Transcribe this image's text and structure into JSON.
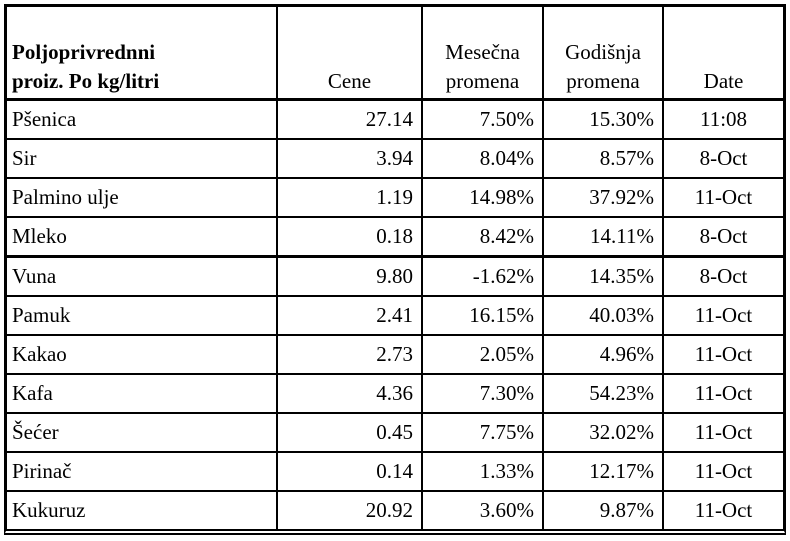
{
  "table": {
    "colors": {
      "border": "#000000",
      "text": "#000000",
      "background": "#ffffff"
    },
    "header": {
      "product_line1": "Poljoprivrednni",
      "product_line2": "proiz. Po kg/litri",
      "cene": "Cene",
      "mesecna_line1": "Mesečna",
      "mesecna_line2": "promena",
      "godisnja_line1": "Godišnja",
      "godisnja_line2": "promena",
      "date": "Date"
    },
    "rows": [
      {
        "name": "Pšenica",
        "cene": "27.14",
        "mesecna": "7.50%",
        "godisnja": "15.30%",
        "date": "11:08"
      },
      {
        "name": "Sir",
        "cene": "3.94",
        "mesecna": "8.04%",
        "godisnja": "8.57%",
        "date": "8-Oct"
      },
      {
        "name": "Palmino ulje",
        "cene": "1.19",
        "mesecna": "14.98%",
        "godisnja": "37.92%",
        "date": "11-Oct"
      },
      {
        "name": "Mleko",
        "cene": "0.18",
        "mesecna": "8.42%",
        "godisnja": "14.11%",
        "date": "8-Oct"
      },
      {
        "name": "Vuna",
        "cene": "9.80",
        "mesecna": "-1.62%",
        "godisnja": "14.35%",
        "date": "8-Oct"
      },
      {
        "name": "Pamuk",
        "cene": "2.41",
        "mesecna": "16.15%",
        "godisnja": "40.03%",
        "date": "11-Oct"
      },
      {
        "name": "Kakao",
        "cene": "2.73",
        "mesecna": "2.05%",
        "godisnja": "4.96%",
        "date": "11-Oct"
      },
      {
        "name": "Kafa",
        "cene": "4.36",
        "mesecna": "7.30%",
        "godisnja": "54.23%",
        "date": "11-Oct"
      },
      {
        "name": "Šećer",
        "cene": "0.45",
        "mesecna": "7.75%",
        "godisnja": "32.02%",
        "date": "11-Oct"
      },
      {
        "name": "Pirinač",
        "cene": "0.14",
        "mesecna": "1.33%",
        "godisnja": "12.17%",
        "date": "11-Oct"
      },
      {
        "name": "Kukuruz",
        "cene": "20.92",
        "mesecna": "3.60%",
        "godisnja": "9.87%",
        "date": "11-Oct"
      }
    ]
  }
}
